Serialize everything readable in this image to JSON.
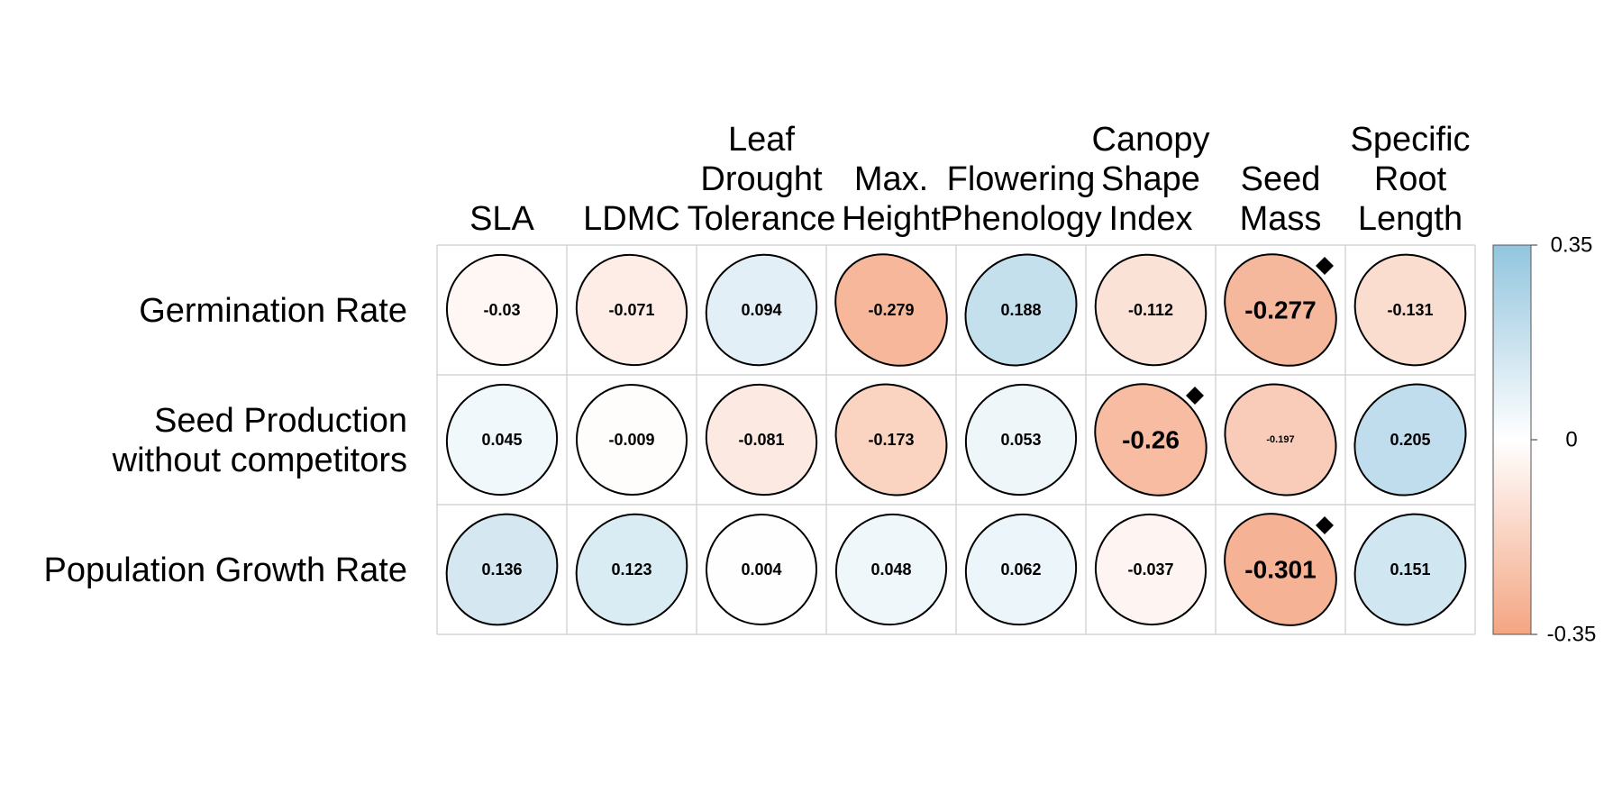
{
  "chart_data": {
    "type": "heatmap",
    "columns": [
      [
        "SLA"
      ],
      [
        "LDMC"
      ],
      [
        "Leaf",
        "Drought",
        "Tolerance"
      ],
      [
        "Max.",
        "Height"
      ],
      [
        "Flowering",
        "Phenology"
      ],
      [
        "Canopy",
        "Shape",
        "Index"
      ],
      [
        "Seed",
        "Mass"
      ],
      [
        "Specific",
        "Root",
        "Length"
      ]
    ],
    "rows": [
      [
        "Germination Rate"
      ],
      [
        "Seed Production",
        "without competitors"
      ],
      [
        "Population Growth Rate"
      ]
    ],
    "values": [
      [
        -0.03,
        -0.071,
        0.094,
        -0.279,
        0.188,
        -0.112,
        -0.277,
        -0.131
      ],
      [
        0.045,
        -0.009,
        -0.081,
        -0.173,
        0.053,
        -0.26,
        -0.197,
        0.205
      ],
      [
        0.136,
        0.123,
        0.004,
        0.048,
        0.062,
        -0.037,
        -0.301,
        0.151
      ]
    ],
    "value_labels": [
      [
        "-0.03",
        "-0.071",
        "0.094",
        "-0.279",
        "0.188",
        "-0.112",
        "-0.277",
        "-0.131"
      ],
      [
        "0.045",
        "-0.009",
        "-0.081",
        "-0.173",
        "0.053",
        "-0.26",
        "-0.197",
        "0.205"
      ],
      [
        "0.136",
        "0.123",
        "0.004",
        "0.048",
        "0.062",
        "-0.037",
        "-0.301",
        "0.151"
      ]
    ],
    "label_emphasis": [
      [
        "normal",
        "normal",
        "normal",
        "normal",
        "normal",
        "normal",
        "large",
        "normal"
      ],
      [
        "normal",
        "normal",
        "normal",
        "normal",
        "normal",
        "large",
        "small",
        "normal"
      ],
      [
        "normal",
        "normal",
        "normal",
        "normal",
        "normal",
        "normal",
        "large",
        "normal"
      ]
    ],
    "significance_markers": [
      [
        false,
        false,
        false,
        false,
        false,
        false,
        true,
        false
      ],
      [
        false,
        false,
        false,
        false,
        false,
        true,
        false,
        false
      ],
      [
        false,
        false,
        false,
        false,
        false,
        false,
        true,
        false
      ]
    ],
    "marker_symbol": "diamond",
    "color_scale": {
      "min": -0.35,
      "max": 0.35,
      "min_color": "#F4A582",
      "mid_color": "#FFFFFF",
      "max_color": "#92C5DE",
      "tick_labels": [
        "0.35",
        "0",
        "-0.35"
      ],
      "position": "right"
    },
    "shape": "ellipse",
    "grid": true,
    "grid_color": "#CCCCCC"
  }
}
